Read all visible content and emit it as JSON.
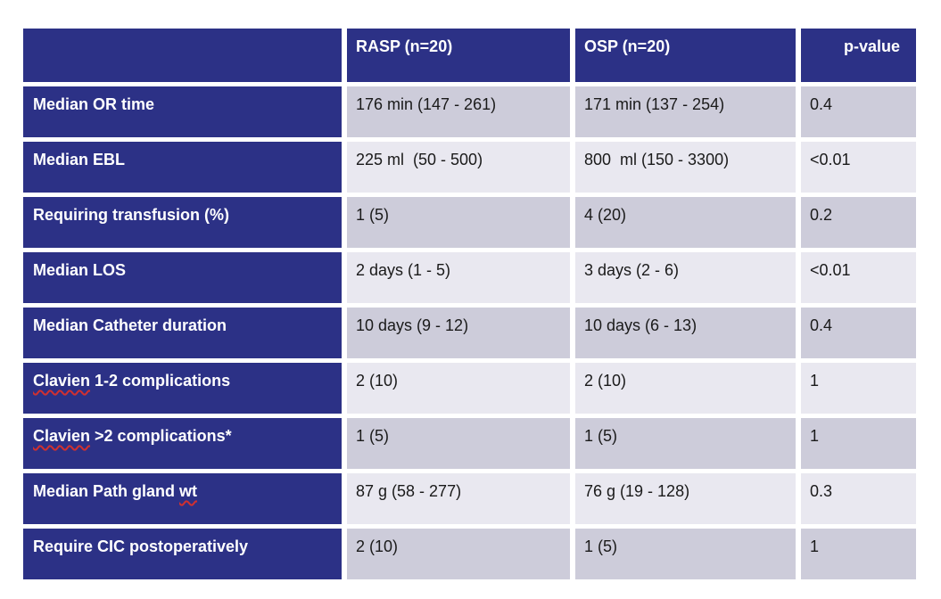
{
  "theme": {
    "navy": "#2C3186",
    "row_dark": "#CDCCDA",
    "row_light": "#E9E8F0",
    "header_text": "#FFFFFF",
    "data_text": "#1A1A1A",
    "squiggle_red": "#D03030",
    "background": "#FFFFFF"
  },
  "table": {
    "header": {
      "col1": "",
      "col2": "RASP (n=20)",
      "col3": "OSP (n=20)",
      "col4": "p-value"
    },
    "rows": [
      {
        "label_pre": "Median OR time",
        "rasp": "176 min (147 - 261)",
        "osp": "171 min (137 - 254)",
        "p": "0.4"
      },
      {
        "label_pre": "Median EBL",
        "rasp": "225 ml  (50 - 500)",
        "osp": "800  ml (150 - 3300)",
        "p": "<0.01"
      },
      {
        "label_pre": "Requiring transfusion (%)",
        "rasp": "1 (5)",
        "osp": "4 (20)",
        "p": "0.2"
      },
      {
        "label_pre": "Median LOS",
        "rasp": "2 days (1 - 5)",
        "osp": "3 days (2 - 6)",
        "p": "<0.01"
      },
      {
        "label_pre": "Median Catheter duration",
        "rasp": "10 days (9 - 12)",
        "osp": "10 days (6 - 13)",
        "p": "0.4"
      },
      {
        "label_pre": "",
        "label_misspelled": "Clavien",
        "label_post": " 1-2 complications",
        "rasp": "2 (10)",
        "osp": "2 (10)",
        "p": "1"
      },
      {
        "label_pre": "",
        "label_misspelled": "Clavien",
        "label_post": " >2 complications*",
        "rasp": "1 (5)",
        "osp": "1 (5)",
        "p": "1"
      },
      {
        "label_pre": "Median Path gland ",
        "label_misspelled": "wt",
        "label_post": "",
        "rasp": "87 g (58 - 277)",
        "osp": "76 g (19 - 128)",
        "p": "0.3"
      },
      {
        "label_pre": "Require CIC postoperatively",
        "rasp": "2 (10)",
        "osp": "1 (5)",
        "p": "1"
      }
    ]
  }
}
